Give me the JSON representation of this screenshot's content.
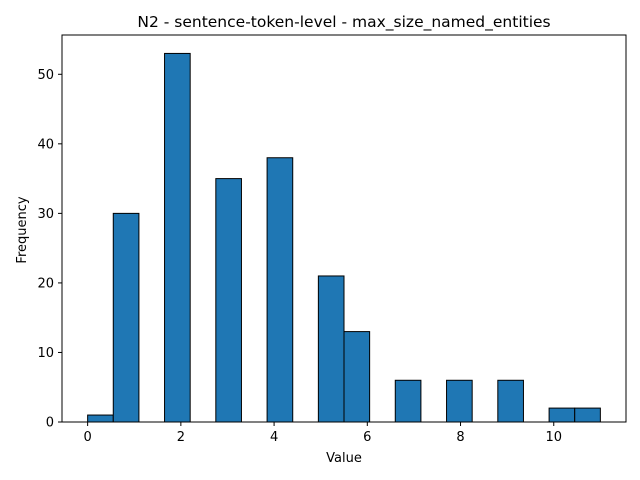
{
  "chart_data": {
    "type": "bar",
    "title": "N2 - sentence-token-level - max_size_named_entities",
    "xlabel": "Value",
    "ylabel": "Frequency",
    "xlim": [
      -0.55,
      11.55
    ],
    "ylim": [
      0,
      55.65
    ],
    "xticks": [
      0,
      2,
      4,
      6,
      8,
      10
    ],
    "yticks": [
      0,
      10,
      20,
      30,
      40,
      50
    ],
    "grid": false,
    "bar_color": "#1f77b4",
    "edge_color": "#000000",
    "bins": [
      {
        "x0": 0.0,
        "x1": 0.55,
        "value": 1
      },
      {
        "x0": 0.55,
        "x1": 1.1,
        "value": 30
      },
      {
        "x0": 1.65,
        "x1": 2.2,
        "value": 53
      },
      {
        "x0": 2.75,
        "x1": 3.3,
        "value": 35
      },
      {
        "x0": 3.85,
        "x1": 4.4,
        "value": 38
      },
      {
        "x0": 4.95,
        "x1": 5.5,
        "value": 21
      },
      {
        "x0": 5.5,
        "x1": 6.05,
        "value": 13
      },
      {
        "x0": 6.6,
        "x1": 7.15,
        "value": 6
      },
      {
        "x0": 7.7,
        "x1": 8.25,
        "value": 6
      },
      {
        "x0": 8.8,
        "x1": 9.35,
        "value": 6
      },
      {
        "x0": 9.9,
        "x1": 10.45,
        "value": 2
      },
      {
        "x0": 10.45,
        "x1": 11.0,
        "value": 2
      }
    ]
  }
}
